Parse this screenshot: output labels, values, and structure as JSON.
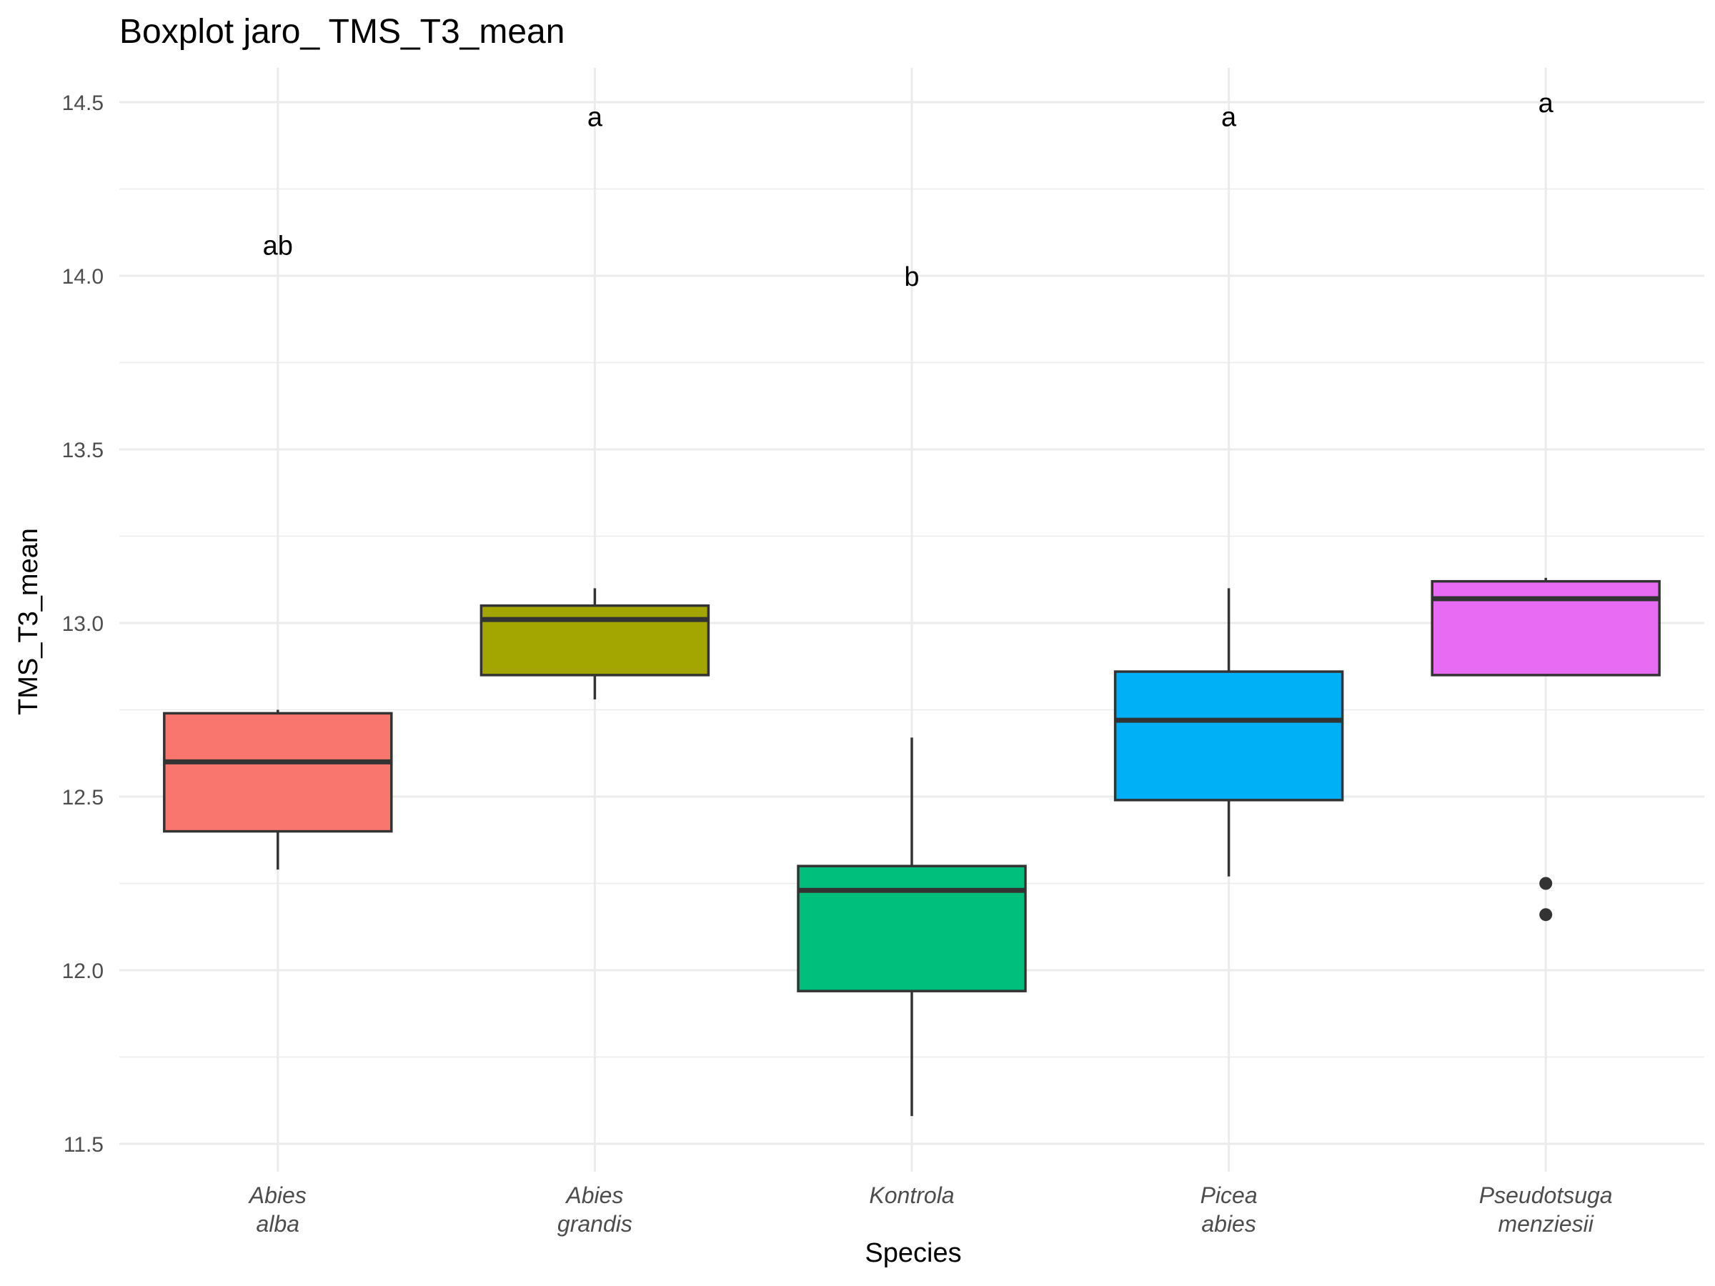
{
  "chart_data": {
    "type": "boxplot",
    "title": "Boxplot jaro_ TMS_T3_mean",
    "xlabel": "Species",
    "ylabel": "TMS_T3_mean",
    "ylim": [
      11.5,
      14.6
    ],
    "yticks": [
      "11.5",
      "12.0",
      "12.5",
      "13.0",
      "13.5",
      "14.0",
      "14.5"
    ],
    "grid": true,
    "legend": "none",
    "categories": [
      {
        "name": "Abies\nalba",
        "line1": "Abies",
        "line2": "alba"
      },
      {
        "name": "Abies\ngrandis",
        "line1": "Abies",
        "line2": "grandis"
      },
      {
        "name": "Kontrola",
        "line1": "Kontrola",
        "line2": ""
      },
      {
        "name": "Picea\nabies",
        "line1": "Picea",
        "line2": "abies"
      },
      {
        "name": "Pseudotsuga\nmenziesii",
        "line1": "Pseudotsuga",
        "line2": "menziesii"
      }
    ],
    "boxes": [
      {
        "whisker_low": 12.29,
        "q1": 12.4,
        "median": 12.6,
        "q3": 12.74,
        "whisker_high": 12.75,
        "outliers": [],
        "color": "#F8766D"
      },
      {
        "whisker_low": 12.78,
        "q1": 12.85,
        "median": 13.01,
        "q3": 13.05,
        "whisker_high": 13.1,
        "outliers": [],
        "color": "#A3A500"
      },
      {
        "whisker_low": 11.58,
        "q1": 11.94,
        "median": 12.23,
        "q3": 12.3,
        "whisker_high": 12.67,
        "outliers": [],
        "color": "#00BF7D"
      },
      {
        "whisker_low": 12.27,
        "q1": 12.49,
        "median": 12.72,
        "q3": 12.86,
        "whisker_high": 13.1,
        "outliers": [],
        "color": "#00B0F6"
      },
      {
        "whisker_low": 12.85,
        "q1": 12.85,
        "median": 13.07,
        "q3": 13.12,
        "whisker_high": 13.13,
        "outliers": [
          12.25,
          12.16
        ],
        "color": "#E76BF3"
      }
    ],
    "annotations": [
      {
        "text": "ab",
        "y": 14.09
      },
      {
        "text": "a",
        "y": 14.46
      },
      {
        "text": "b",
        "y": 14.0
      },
      {
        "text": "a",
        "y": 14.46
      },
      {
        "text": "a",
        "y": 14.5
      }
    ]
  }
}
